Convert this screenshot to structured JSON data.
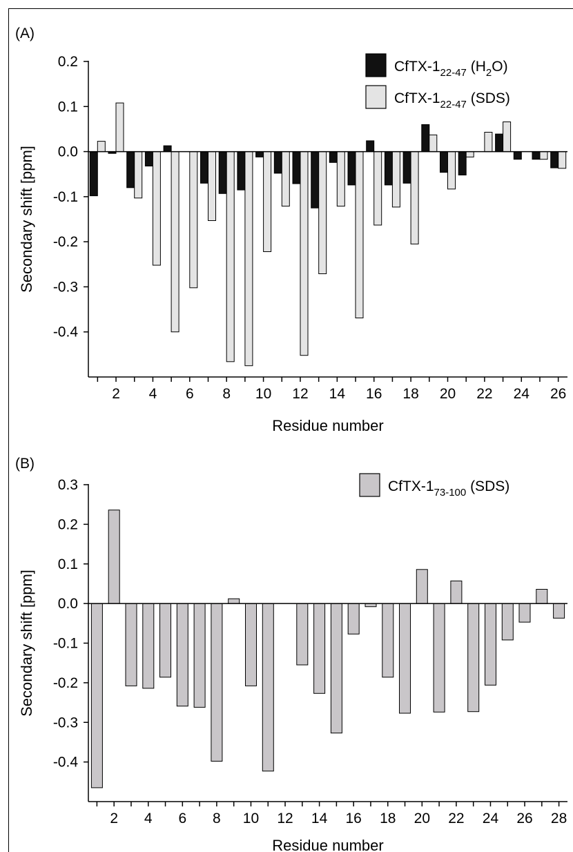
{
  "chart_data": [
    {
      "type": "bar",
      "panel_label": "(A)",
      "xlabel": "Residue number",
      "ylabel": "Secondary shift [ppm]",
      "ylim": [
        -0.5,
        0.2
      ],
      "yticks": [
        "0.2",
        "0.1",
        "0.0",
        "-0.1",
        "-0.2",
        "-0.3",
        "-0.4"
      ],
      "xticks": [
        "2",
        "4",
        "6",
        "8",
        "10",
        "12",
        "14",
        "16",
        "18",
        "20",
        "22",
        "24",
        "26"
      ],
      "categories": [
        1,
        2,
        3,
        4,
        5,
        6,
        7,
        8,
        9,
        10,
        11,
        12,
        13,
        14,
        15,
        16,
        17,
        18,
        19,
        20,
        21,
        22,
        23,
        24,
        25,
        26
      ],
      "legend_position": "top-right",
      "series": [
        {
          "name": "CfTX-1",
          "name_sub": "22-47",
          "name_suffix": " (H",
          "name_sub2": "2",
          "name_end": "O)",
          "color": "#111111",
          "values": [
            -0.098,
            -0.004,
            -0.08,
            -0.032,
            0.013,
            0.0,
            -0.07,
            -0.093,
            -0.085,
            -0.012,
            -0.048,
            -0.071,
            -0.125,
            -0.024,
            -0.074,
            0.024,
            -0.074,
            -0.07,
            0.06,
            -0.046,
            -0.052,
            0.0,
            0.039,
            -0.017,
            -0.017,
            -0.036
          ]
        },
        {
          "name": "CfTX-1",
          "name_sub": "22-47",
          "name_suffix": " (SDS)",
          "name_sub2": "",
          "name_end": "",
          "color": "#e4e4e4",
          "values": [
            0.023,
            0.108,
            -0.103,
            -0.252,
            -0.4,
            -0.302,
            -0.153,
            -0.466,
            -0.475,
            -0.222,
            -0.121,
            -0.452,
            -0.271,
            -0.121,
            -0.369,
            -0.163,
            -0.123,
            -0.205,
            0.037,
            -0.083,
            -0.012,
            0.043,
            0.066,
            0.0,
            -0.017,
            -0.037
          ]
        }
      ]
    },
    {
      "type": "bar",
      "panel_label": "(B)",
      "xlabel": "Residue number",
      "ylabel": "Secondary shift [ppm]",
      "ylim": [
        -0.5,
        0.3
      ],
      "yticks": [
        "0.3",
        "0.2",
        "0.1",
        "0.0",
        "-0.1",
        "-0.2",
        "-0.3",
        "-0.4"
      ],
      "xticks": [
        "2",
        "4",
        "6",
        "8",
        "10",
        "12",
        "14",
        "16",
        "18",
        "20",
        "22",
        "24",
        "26",
        "28"
      ],
      "categories": [
        1,
        2,
        3,
        4,
        5,
        6,
        7,
        8,
        9,
        10,
        11,
        12,
        13,
        14,
        15,
        16,
        17,
        18,
        19,
        20,
        21,
        22,
        23,
        24,
        25,
        26,
        27,
        28
      ],
      "legend_position": "top-right",
      "series": [
        {
          "name": "CfTX-1",
          "name_sub": "73-100",
          "name_suffix": " (SDS)",
          "name_sub2": "",
          "name_end": "",
          "color": "#c9c6c9",
          "values": [
            -0.465,
            0.236,
            -0.208,
            -0.214,
            -0.186,
            -0.259,
            -0.262,
            -0.398,
            0.012,
            -0.208,
            -0.423,
            0.0,
            -0.155,
            -0.227,
            -0.327,
            -0.077,
            -0.008,
            -0.186,
            -0.277,
            0.086,
            -0.274,
            0.057,
            -0.273,
            -0.206,
            -0.092,
            -0.047,
            0.036,
            -0.037
          ]
        }
      ]
    }
  ]
}
